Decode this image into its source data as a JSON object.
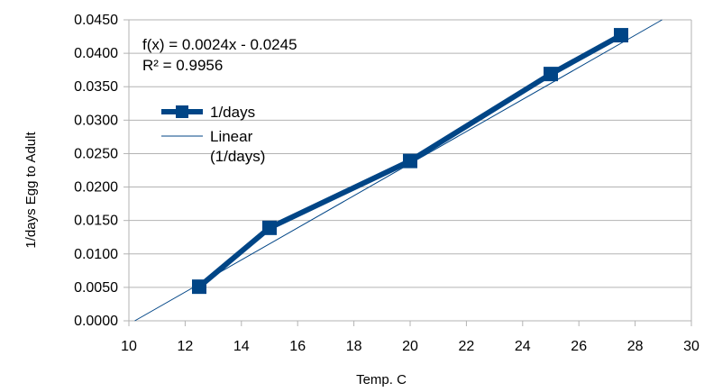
{
  "chart_data": {
    "type": "line",
    "title": "",
    "xlabel": "Temp. C",
    "ylabel": "1/days Egg to Adult",
    "xlim": [
      10,
      30
    ],
    "ylim": [
      0,
      0.045
    ],
    "x_ticks": [
      "10",
      "12",
      "14",
      "16",
      "18",
      "20",
      "22",
      "24",
      "26",
      "28",
      "30"
    ],
    "y_ticks": [
      "0.0000",
      "0.0050",
      "0.0100",
      "0.0150",
      "0.0200",
      "0.0250",
      "0.0300",
      "0.0350",
      "0.0400",
      "0.0450"
    ],
    "grid": "horizontal",
    "series": [
      {
        "name": "1/days",
        "x": [
          12.5,
          15,
          20,
          25,
          27.5
        ],
        "y": [
          0.0051,
          0.0139,
          0.0239,
          0.0369,
          0.0427
        ],
        "color": "#004586",
        "marker": "square"
      }
    ],
    "trendline": {
      "name": "Linear (1/days)",
      "name_lines": [
        "Linear",
        "(1/days)"
      ],
      "slope": 0.0024,
      "intercept": -0.0245,
      "color": "#004586"
    },
    "annotations": {
      "equation": "f(x) = 0.0024x - 0.0245",
      "r_squared": "R² = 0.9956"
    },
    "legend_position": "upper-left"
  }
}
